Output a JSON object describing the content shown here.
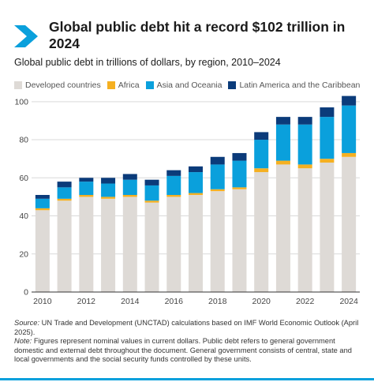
{
  "header": {
    "title": "Global public debt hit a record $102 trillion in 2024",
    "subtitle": "Global public debt in trillions of dollars, by region, 2010–2024"
  },
  "chart_data": {
    "type": "bar",
    "stacked": true,
    "title": "Global public debt hit a record $102 trillion in 2024",
    "subtitle": "Global public debt in trillions of dollars, by region, 2010–2024",
    "xlabel": "",
    "ylabel": "",
    "ylim": [
      0,
      100
    ],
    "yticks": [
      0,
      20,
      40,
      60,
      80,
      100
    ],
    "xticks": [
      "2010",
      "2012",
      "2014",
      "2016",
      "2018",
      "2020",
      "2022",
      "2024"
    ],
    "grid": true,
    "legend_position": "top",
    "categories": [
      "2010",
      "2011",
      "2012",
      "2013",
      "2014",
      "2015",
      "2016",
      "2017",
      "2018",
      "2019",
      "2020",
      "2021",
      "2022",
      "2023",
      "2024"
    ],
    "series": [
      {
        "name": "Developed countries",
        "color": "#dedad6",
        "values": [
          43,
          48,
          50,
          49,
          50,
          47,
          50,
          51,
          53,
          54,
          63,
          67,
          65,
          68,
          71
        ]
      },
      {
        "name": "Africa",
        "color": "#f5b021",
        "values": [
          1,
          1,
          1,
          1,
          1,
          1,
          1,
          1,
          1,
          1,
          2,
          2,
          2,
          2,
          2
        ]
      },
      {
        "name": "Asia and Oceania",
        "color": "#0aa0dc",
        "values": [
          5,
          6,
          7,
          7,
          8,
          8,
          10,
          11,
          13,
          14,
          15,
          19,
          21,
          22,
          25
        ]
      },
      {
        "name": "Latin America and the Caribbean",
        "color": "#0b3b7a",
        "values": [
          2,
          3,
          2,
          3,
          3,
          3,
          3,
          3,
          4,
          4,
          4,
          4,
          4,
          5,
          5
        ]
      }
    ]
  },
  "footnote": {
    "source_label": "Source:",
    "source_text": " UN Trade and Development (UNCTAD) calculations based on IMF World Economic Outlook (April 2025).",
    "note_label": "Note:",
    "note_text": " Figures represent nominal values in current dollars. Public debt refers to general government domestic and external debt throughout the document. General government consists of central, state and local governments and the social security funds controlled by these units."
  },
  "colors": {
    "accent": "#0aa0dc",
    "gridline": "#d9d9d9",
    "axis": "#333333"
  }
}
